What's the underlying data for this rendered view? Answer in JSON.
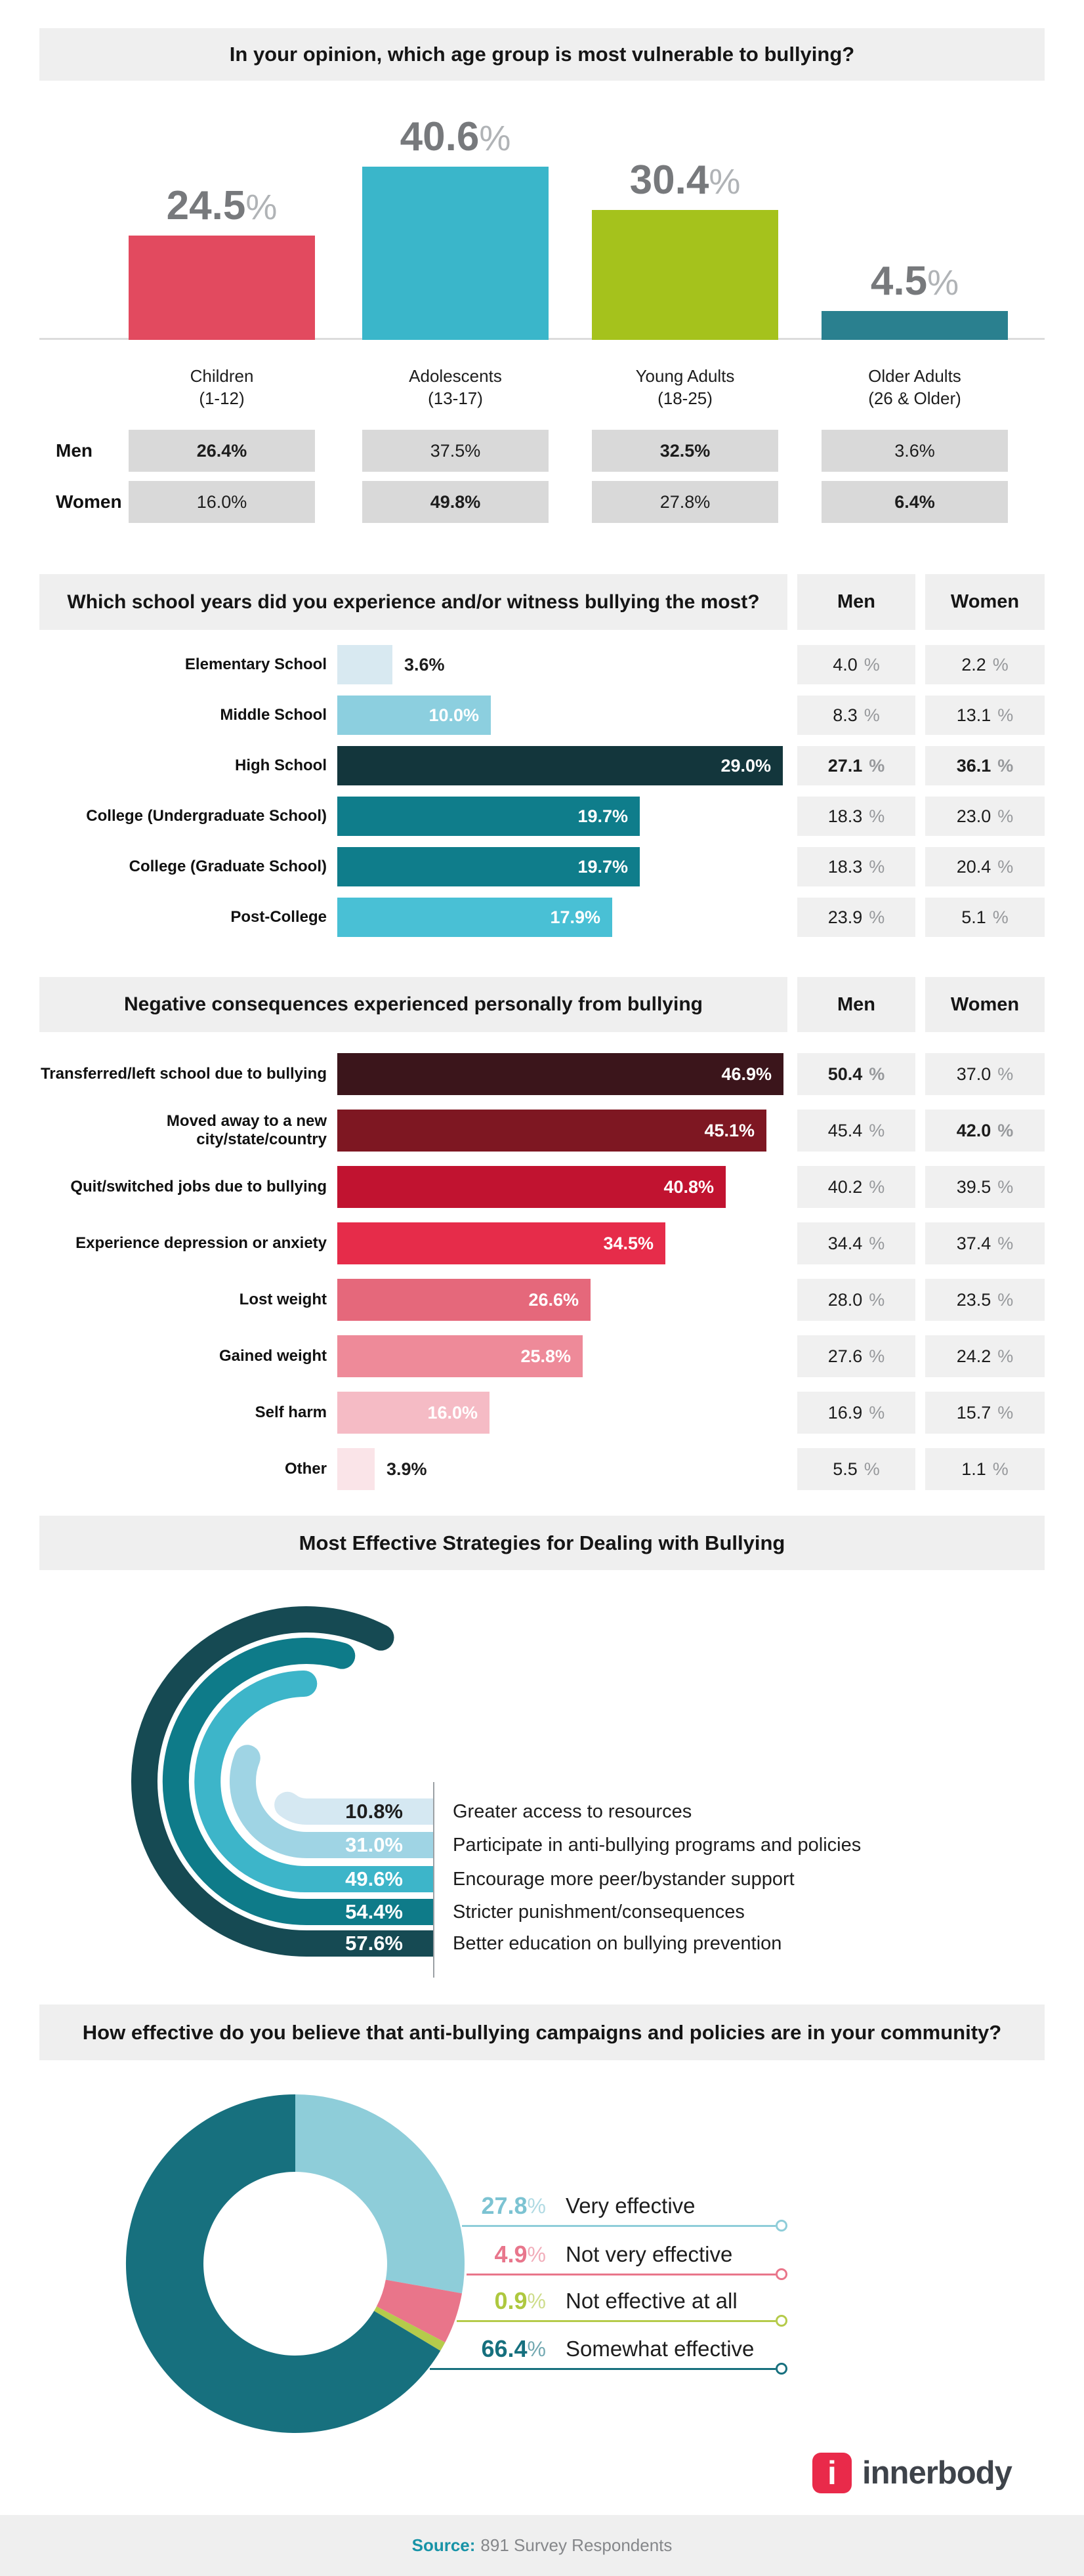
{
  "page": {
    "background": "#ffffff",
    "panel_bg": "#efefef"
  },
  "section1": {
    "title": "In your opinion, which age group is most vulnerable to bullying?",
    "row_labels": [
      "Men",
      "Women"
    ],
    "categories": [
      {
        "label": "Children",
        "range": "(1-12)",
        "display": "24.5%",
        "value": 24.5,
        "color": "#e24a5f",
        "men": {
          "value": "26.4%",
          "bold": true
        },
        "women": {
          "value": "16.0%",
          "bold": false
        }
      },
      {
        "label": "Adolescents",
        "range": "(13-17)",
        "display": "40.6%",
        "value": 40.6,
        "color": "#3ab6ca",
        "men": {
          "value": "37.5%",
          "bold": false
        },
        "women": {
          "value": "49.8%",
          "bold": true
        }
      },
      {
        "label": "Young Adults",
        "range": "(18-25)",
        "display": "30.4%",
        "value": 30.4,
        "color": "#a5c21c",
        "men": {
          "value": "32.5%",
          "bold": true
        },
        "women": {
          "value": "27.8%",
          "bold": false
        }
      },
      {
        "label": "Older Adults",
        "range": "(26 & Older)",
        "display": "4.5%",
        "value": 4.5,
        "color": "#2a808f",
        "men": {
          "value": "3.6%",
          "bold": false
        },
        "women": {
          "value": "6.4%",
          "bold": true
        }
      }
    ]
  },
  "section2": {
    "title": "Which school years did you experience and/or witness bullying the most?",
    "col_headers": [
      "Men",
      "Women"
    ],
    "rows": [
      {
        "label": "Elementary School",
        "display": "3.6%",
        "value": 3.6,
        "color": "#d8e9f1",
        "value_inside": false,
        "men": {
          "value": "4.0",
          "bold": false
        },
        "women": {
          "value": "2.2",
          "bold": false
        }
      },
      {
        "label": "Middle School",
        "display": "10.0%",
        "value": 10.0,
        "color": "#8ccfdf",
        "value_inside": true,
        "men": {
          "value": "8.3",
          "bold": false
        },
        "women": {
          "value": "13.1",
          "bold": false
        }
      },
      {
        "label": "High School",
        "display": "29.0%",
        "value": 29.0,
        "color": "#13363c",
        "value_inside": true,
        "men": {
          "value": "27.1",
          "bold": true
        },
        "women": {
          "value": "36.1",
          "bold": true
        }
      },
      {
        "label": "College (Undergraduate School)",
        "display": "19.7%",
        "value": 19.7,
        "color": "#0f7d8b",
        "value_inside": true,
        "men": {
          "value": "18.3",
          "bold": false
        },
        "women": {
          "value": "23.0",
          "bold": false
        }
      },
      {
        "label": "College (Graduate School)",
        "display": "19.7%",
        "value": 19.7,
        "color": "#0f7d8b",
        "value_inside": true,
        "men": {
          "value": "18.3",
          "bold": false
        },
        "women": {
          "value": "20.4",
          "bold": false
        }
      },
      {
        "label": "Post-College",
        "display": "17.9%",
        "value": 17.9,
        "color": "#49c0d5",
        "value_inside": true,
        "men": {
          "value": "23.9",
          "bold": false
        },
        "women": {
          "value": "5.1",
          "bold": false
        }
      }
    ]
  },
  "section3": {
    "title": "Negative consequences experienced personally from bullying",
    "col_headers": [
      "Men",
      "Women"
    ],
    "rows": [
      {
        "label": "Transferred/left school due to bullying",
        "display": "46.9%",
        "value": 46.9,
        "color": "#3b151b",
        "value_inside": true,
        "men": {
          "value": "50.4",
          "bold": true
        },
        "women": {
          "value": "37.0",
          "bold": false
        }
      },
      {
        "label": "Moved away to a new city/state/country",
        "display": "45.1%",
        "value": 45.1,
        "color": "#7e1722",
        "value_inside": true,
        "men": {
          "value": "45.4",
          "bold": false
        },
        "women": {
          "value": "42.0",
          "bold": true
        }
      },
      {
        "label": "Quit/switched jobs due to bullying",
        "display": "40.8%",
        "value": 40.8,
        "color": "#c11330",
        "value_inside": true,
        "men": {
          "value": "40.2",
          "bold": false
        },
        "women": {
          "value": "39.5",
          "bold": false
        }
      },
      {
        "label": "Experience depression or anxiety",
        "display": "34.5%",
        "value": 34.5,
        "color": "#e62c4a",
        "value_inside": true,
        "men": {
          "value": "34.4",
          "bold": false
        },
        "women": {
          "value": "37.4",
          "bold": false
        }
      },
      {
        "label": "Lost weight",
        "display": "26.6%",
        "value": 26.6,
        "color": "#e5687b",
        "value_inside": true,
        "men": {
          "value": "28.0",
          "bold": false
        },
        "women": {
          "value": "23.5",
          "bold": false
        }
      },
      {
        "label": "Gained weight",
        "display": "25.8%",
        "value": 25.8,
        "color": "#ee8a99",
        "value_inside": true,
        "men": {
          "value": "27.6",
          "bold": false
        },
        "women": {
          "value": "24.2",
          "bold": false
        }
      },
      {
        "label": "Self harm",
        "display": "16.0%",
        "value": 16.0,
        "color": "#f5bbc5",
        "value_inside": true,
        "men": {
          "value": "16.9",
          "bold": false
        },
        "women": {
          "value": "15.7",
          "bold": false
        }
      },
      {
        "label": "Other",
        "display": "3.9%",
        "value": 3.9,
        "color": "#fae4e8",
        "value_inside": false,
        "men": {
          "value": "5.5",
          "bold": false
        },
        "women": {
          "value": "1.1",
          "bold": false
        }
      }
    ]
  },
  "section4": {
    "title": "Most Effective Strategies for Dealing with Bullying",
    "items": [
      {
        "label": "Greater access to resources",
        "display": "10.8%",
        "value": 10.8,
        "color": "#d5e8f2",
        "text_color": "#1d1d1d"
      },
      {
        "label": "Participate in anti-bullying programs and policies",
        "display": "31.0%",
        "value": 31.0,
        "color": "#9fd4e4",
        "text_color": "#ffffff"
      },
      {
        "label": "Encourage more peer/bystander support",
        "display": "49.6%",
        "value": 49.6,
        "color": "#3db5c9",
        "text_color": "#ffffff"
      },
      {
        "label": "Stricter punishment/consequences",
        "display": "54.4%",
        "value": 54.4,
        "color": "#0e7b89",
        "text_color": "#ffffff"
      },
      {
        "label": "Better education on bullying prevention",
        "display": "57.6%",
        "value": 57.6,
        "color": "#164a53",
        "text_color": "#ffffff"
      }
    ]
  },
  "section5": {
    "title": "How effective do you believe that anti-bullying campaigns and policies are in your community?",
    "slices": [
      {
        "label": "Very effective",
        "display": "27.8%",
        "value": 27.8,
        "color": "#8ecdd9",
        "text_color": "#7cc3d2"
      },
      {
        "label": "Not very effective",
        "display": "4.9%",
        "value": 4.9,
        "color": "#e9758a",
        "text_color": "#e8768c"
      },
      {
        "label": "Not effective at all",
        "display": "0.9%",
        "value": 0.9,
        "color": "#b5cb4b",
        "text_color": "#aec83f"
      },
      {
        "label": "Somewhat effective",
        "display": "66.4%",
        "value": 66.4,
        "color": "#17707e",
        "text_color": "#16707e"
      }
    ]
  },
  "footer": {
    "brand": "innerbody",
    "logo_letter": "i",
    "logo_color": "#e92a4a",
    "source_label": "Source:",
    "source_text": "891 Survey Respondents",
    "source_accent": "#1793a7"
  },
  "chart_data": [
    {
      "type": "bar",
      "title": "In your opinion, which age group is most vulnerable to bullying?",
      "categories": [
        "Children (1-12)",
        "Adolescents (13-17)",
        "Young Adults (18-25)",
        "Older Adults (26 & Older)"
      ],
      "values": [
        24.5,
        40.6,
        30.4,
        4.5
      ],
      "series": [
        {
          "name": "Men",
          "values": [
            26.4,
            37.5,
            32.5,
            3.6
          ]
        },
        {
          "name": "Women",
          "values": [
            16.0,
            49.8,
            27.8,
            6.4
          ]
        }
      ],
      "colors": [
        "#e24a5f",
        "#3ab6ca",
        "#a5c21c",
        "#2a808f"
      ],
      "ylim": [
        0,
        45
      ],
      "grid": false,
      "legend_position": "none"
    },
    {
      "type": "bar",
      "orientation": "horizontal",
      "title": "Which school years did you experience and/or witness bullying the most?",
      "categories": [
        "Elementary School",
        "Middle School",
        "High School",
        "College (Undergraduate School)",
        "College (Graduate School)",
        "Post-College"
      ],
      "values": [
        3.6,
        10.0,
        29.0,
        19.7,
        19.7,
        17.9
      ],
      "series": [
        {
          "name": "Men",
          "values": [
            4.0,
            8.3,
            27.1,
            18.3,
            18.3,
            23.9
          ]
        },
        {
          "name": "Women",
          "values": [
            2.2,
            13.1,
            36.1,
            23.0,
            20.4,
            5.1
          ]
        }
      ],
      "colors": [
        "#d8e9f1",
        "#8ccfdf",
        "#13363c",
        "#0f7d8b",
        "#0f7d8b",
        "#49c0d5"
      ],
      "xlim": [
        0,
        29
      ],
      "grid": false
    },
    {
      "type": "bar",
      "orientation": "horizontal",
      "title": "Negative consequences experienced personally from bullying",
      "categories": [
        "Transferred/left school due to bullying",
        "Moved away to a new city/state/country",
        "Quit/switched jobs due to bullying",
        "Experience depression or anxiety",
        "Lost weight",
        "Gained weight",
        "Self harm",
        "Other"
      ],
      "values": [
        46.9,
        45.1,
        40.8,
        34.5,
        26.6,
        25.8,
        16.0,
        3.9
      ],
      "series": [
        {
          "name": "Men",
          "values": [
            50.4,
            45.4,
            40.2,
            34.4,
            28.0,
            27.6,
            16.9,
            5.5
          ]
        },
        {
          "name": "Women",
          "values": [
            37.0,
            42.0,
            39.5,
            37.4,
            23.5,
            24.2,
            15.7,
            1.1
          ]
        }
      ],
      "colors": [
        "#3b151b",
        "#7e1722",
        "#c11330",
        "#e62c4a",
        "#e5687b",
        "#ee8a99",
        "#f5bbc5",
        "#fae4e8"
      ],
      "xlim": [
        0,
        47
      ],
      "grid": false
    },
    {
      "type": "radial-bar",
      "title": "Most Effective Strategies for Dealing with Bullying",
      "categories": [
        "Greater access to resources",
        "Participate in anti-bullying programs and policies",
        "Encourage more peer/bystander support",
        "Stricter punishment/consequences",
        "Better education on bullying prevention"
      ],
      "values": [
        10.8,
        31.0,
        49.6,
        54.4,
        57.6
      ],
      "colors": [
        "#d5e8f2",
        "#9fd4e4",
        "#3db5c9",
        "#0e7b89",
        "#164a53"
      ],
      "max": 100
    },
    {
      "type": "pie",
      "subtype": "donut",
      "title": "How effective do you believe that anti-bullying campaigns and policies are in your community?",
      "categories": [
        "Very effective",
        "Not very effective",
        "Not effective at all",
        "Somewhat effective"
      ],
      "values": [
        27.8,
        4.9,
        0.9,
        66.4
      ],
      "colors": [
        "#8ecdd9",
        "#e9758a",
        "#b5cb4b",
        "#17707e"
      ],
      "start_angle": -90,
      "direction": "clockwise",
      "legend_position": "right"
    }
  ]
}
